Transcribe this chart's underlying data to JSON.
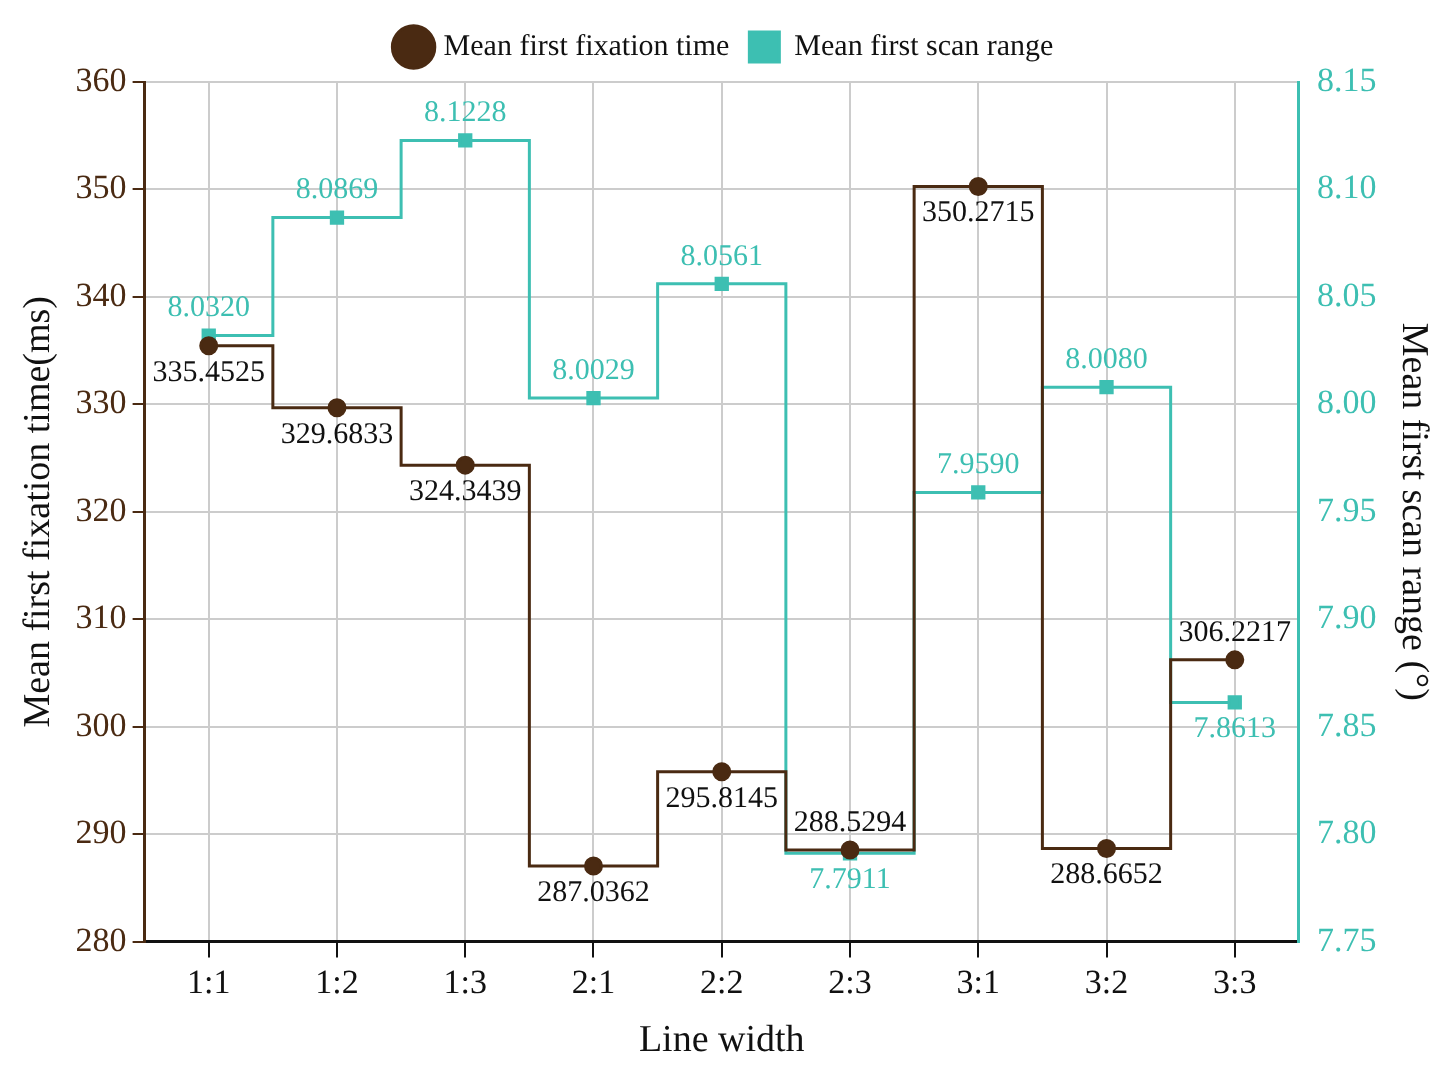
{
  "chart_data": {
    "type": "step",
    "xlabel": "Line width",
    "ylabel": "Mean first fixation time(ms)",
    "y2label": "Mean first scan range (°)",
    "categories": [
      "1:1",
      "1:2",
      "1:3",
      "2:1",
      "2:2",
      "2:3",
      "3:1",
      "3:2",
      "3:3"
    ],
    "series": [
      {
        "name": "Mean first fixation time",
        "color": "#4a2a12",
        "marker": "circle",
        "values": [
          335.4525,
          329.6833,
          324.3439,
          287.0362,
          295.8145,
          288.5294,
          350.2715,
          288.6652,
          306.2217
        ],
        "value_labels": [
          "335.4525",
          "329.6833",
          "324.3439",
          "287.0362",
          "295.8145",
          "288.5294",
          "350.2715",
          "288.6652",
          "306.2217"
        ]
      },
      {
        "name": "Mean first scan range",
        "color": "#3dbfb2",
        "marker": "square",
        "axis": "y2",
        "values": [
          8.032,
          8.0869,
          8.1228,
          8.0029,
          8.0561,
          7.7911,
          7.959,
          8.008,
          7.8613
        ],
        "value_labels": [
          "8.0320",
          "8.0869",
          "8.1228",
          "8.0029",
          "8.0561",
          "7.7911",
          "7.9590",
          "8.0080",
          "7.8613"
        ]
      }
    ],
    "ylim": [
      280,
      360
    ],
    "yticks": [
      280,
      290,
      300,
      310,
      320,
      330,
      340,
      350,
      360
    ],
    "y2lim": [
      7.75,
      8.15
    ],
    "y2ticks": [
      {
        "value": 7.75,
        "label": "7.75"
      },
      {
        "value": 7.8,
        "label": "7.80"
      },
      {
        "value": 7.85,
        "label": "7.85"
      },
      {
        "value": 7.9,
        "label": "7.90"
      },
      {
        "value": 7.95,
        "label": "7.95"
      },
      {
        "value": 8.0,
        "label": "8.00"
      },
      {
        "value": 8.05,
        "label": "8.05"
      },
      {
        "value": 8.1,
        "label": "8.10"
      },
      {
        "value": 8.15,
        "label": "8.15"
      }
    ],
    "grid": true,
    "legend": "top"
  }
}
